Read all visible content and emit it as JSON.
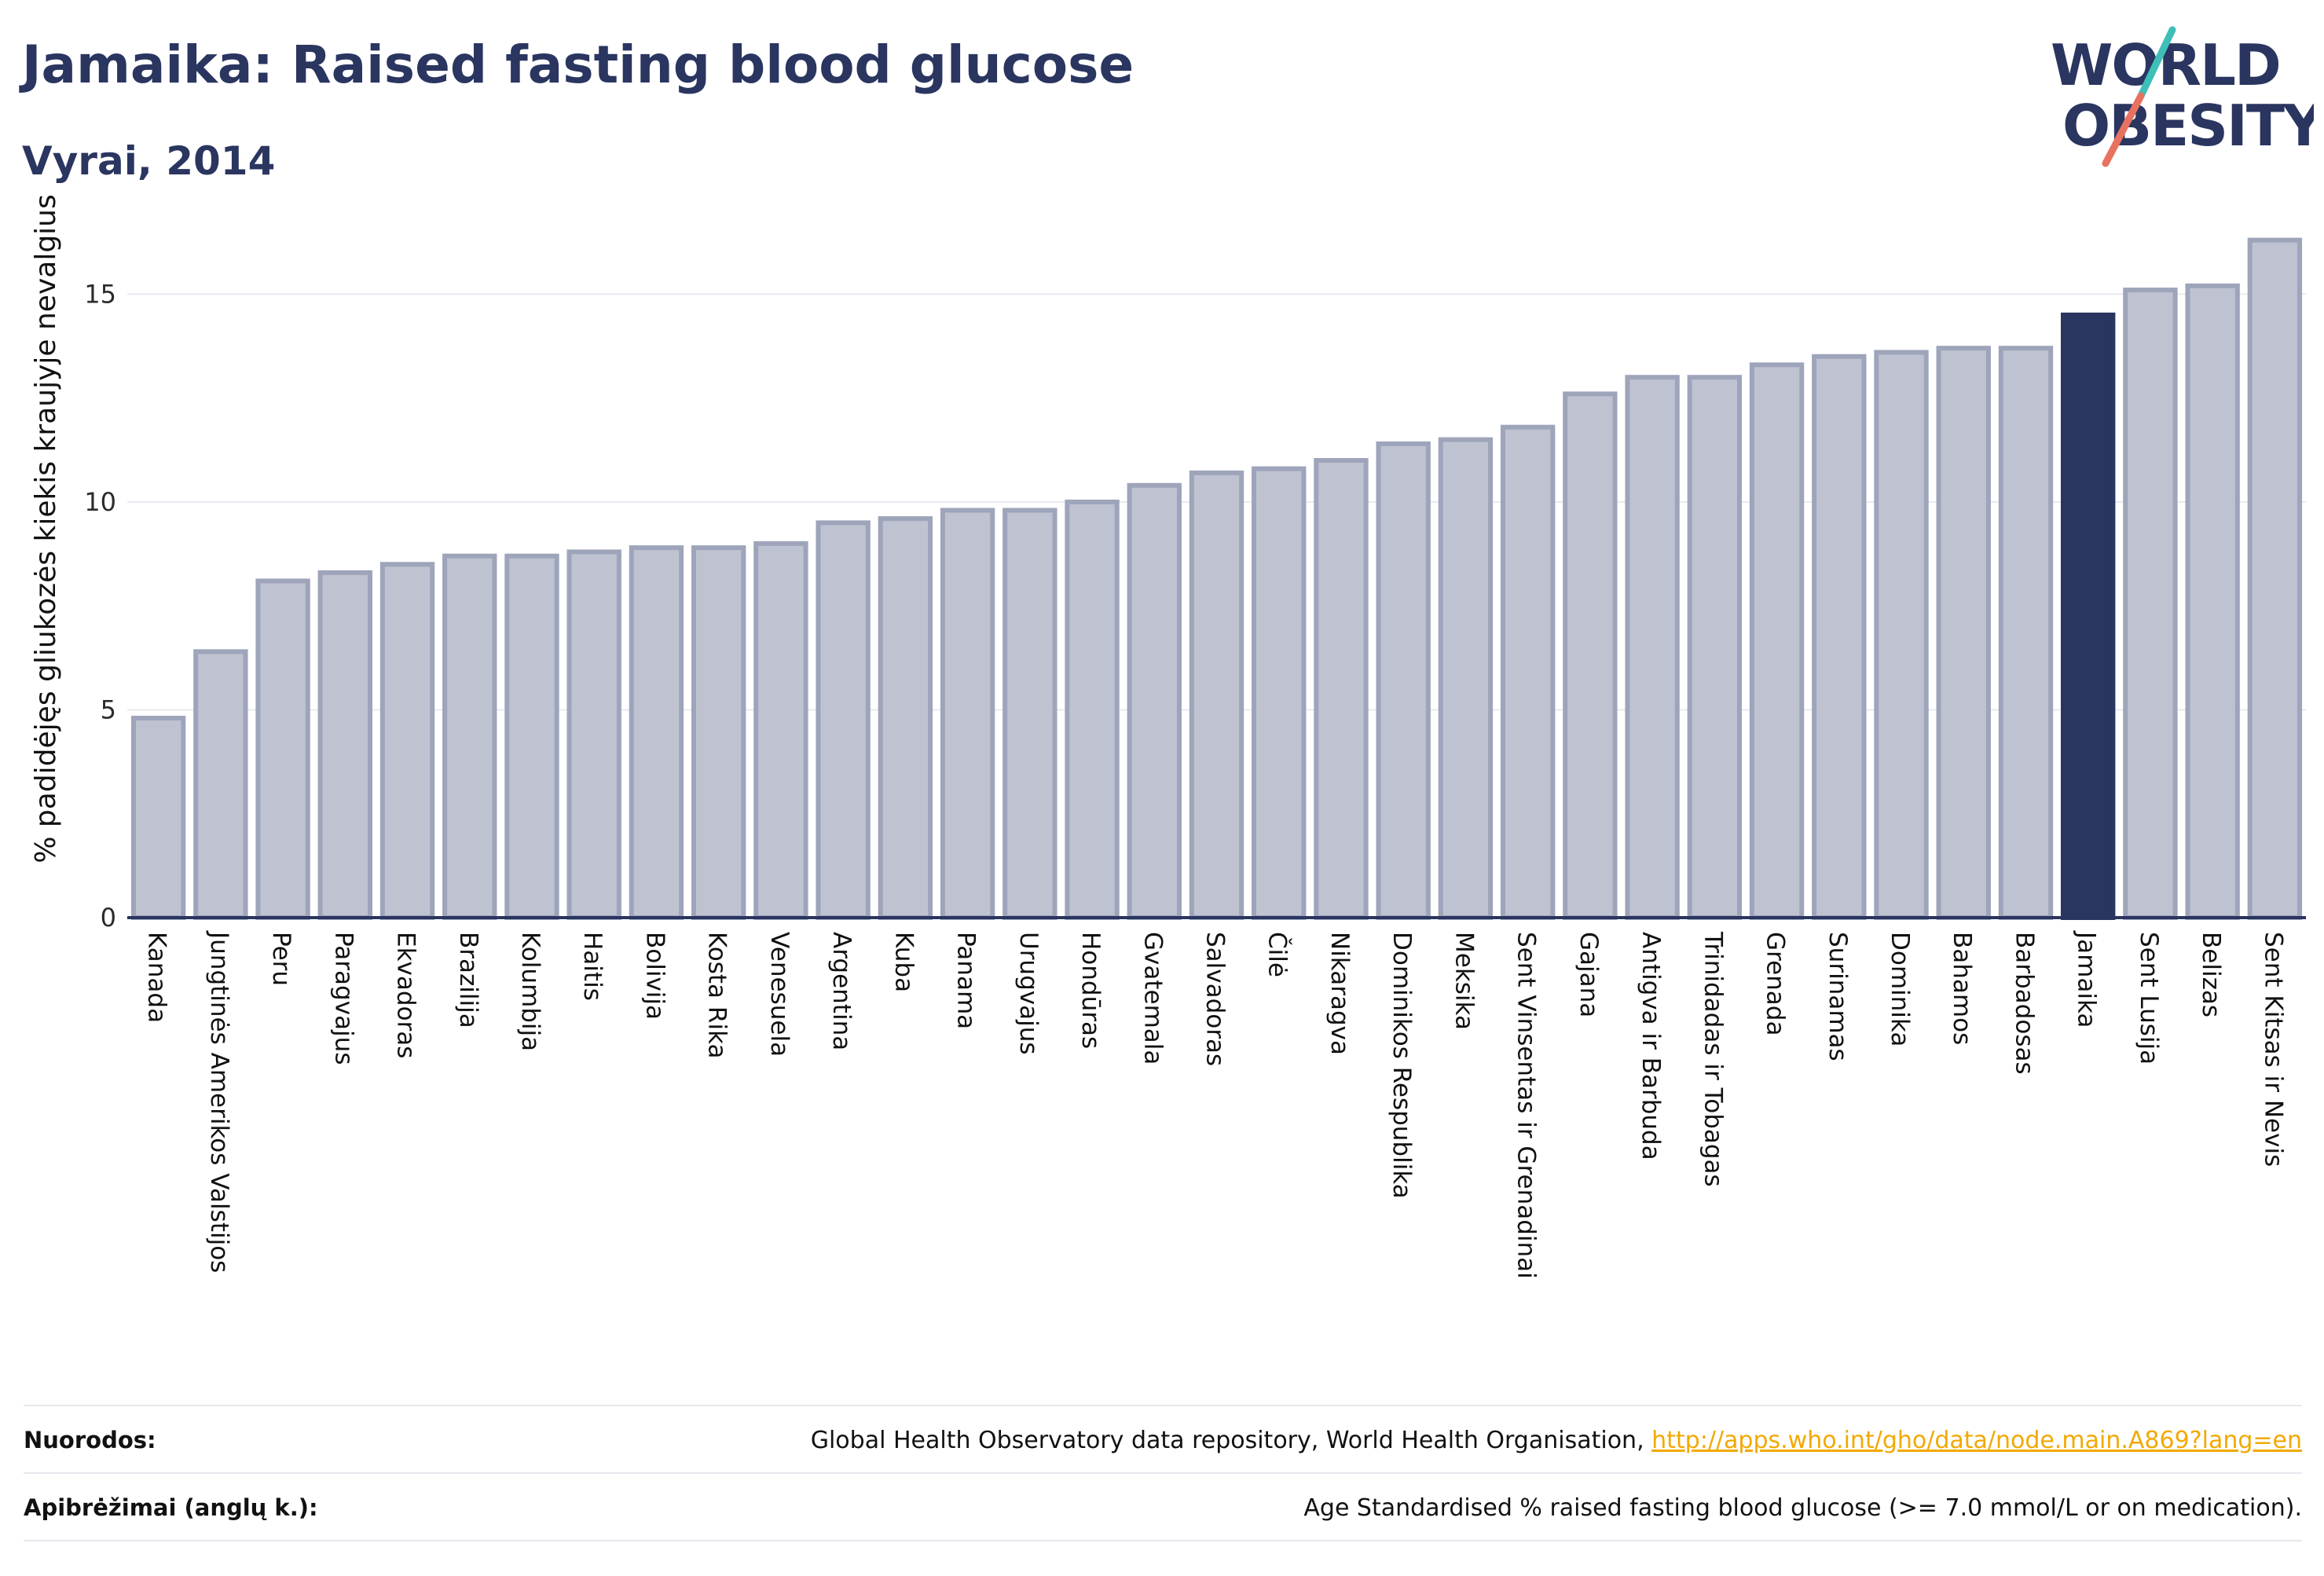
{
  "header": {
    "title": "Jamaika: Raised fasting blood glucose",
    "subtitle": "Vyrai, 2014"
  },
  "logo": {
    "line1": "WORLD",
    "line2": "OBESITY"
  },
  "colors": {
    "text": "#2a3560",
    "bar": "#bfc3d1",
    "bar_border": "#9ea4ba",
    "highlight": "#2a3560",
    "grid": "#e8eaf0",
    "axis": "#2a3560",
    "link": "#f2a900",
    "logo_teal": "#3fbfb7",
    "logo_coral": "#e8725f"
  },
  "chart_data": {
    "type": "bar",
    "ylabel": "% padidėjęs gliukozės kiekis kraujyje nevalgius",
    "ylim": [
      0,
      17.2
    ],
    "yticks": [
      0,
      5,
      10,
      15
    ],
    "grid": true,
    "highlight": "Jamaika",
    "categories": [
      "Kanada",
      "Jungtinės Amerikos Valstijos",
      "Peru",
      "Paragvajus",
      "Ekvadoras",
      "Brazilija",
      "Kolumbija",
      "Haitis",
      "Bolivija",
      "Kosta Rika",
      "Venesuela",
      "Argentina",
      "Kuba",
      "Panama",
      "Urugvajus",
      "Hondūras",
      "Gvatemala",
      "Salvadoras",
      "Čilė",
      "Nikaragva",
      "Dominikos Respublika",
      "Meksika",
      "Sent Vinsentas ir Grenadinai",
      "Gajana",
      "Antigva ir Barbuda",
      "Trinidadas ir Tobagas",
      "Grenada",
      "Surinamas",
      "Dominika",
      "Bahamos",
      "Barbadosas",
      "Jamaika",
      "Sent Lusija",
      "Belizas",
      "Sent Kitsas ir Nevis"
    ],
    "values": [
      4.8,
      6.4,
      8.1,
      8.3,
      8.5,
      8.7,
      8.7,
      8.8,
      8.9,
      8.9,
      9.0,
      9.5,
      9.6,
      9.8,
      9.8,
      10.0,
      10.4,
      10.7,
      10.8,
      11.0,
      11.4,
      11.5,
      11.8,
      12.6,
      13.0,
      13.0,
      13.3,
      13.5,
      13.6,
      13.7,
      13.7,
      14.5,
      15.1,
      15.2,
      16.3
    ]
  },
  "footer": {
    "sources_label": "Nuorodos:",
    "sources_text": "Global Health Observatory data repository, World Health Organisation, ",
    "sources_link": "http://apps.who.int/gho/data/node.main.A869?lang=en",
    "definitions_label": "Apibrėžimai (anglų k.):",
    "definitions_text": "Age Standardised % raised fasting blood glucose (>= 7.0 mmol/L or on medication)."
  }
}
